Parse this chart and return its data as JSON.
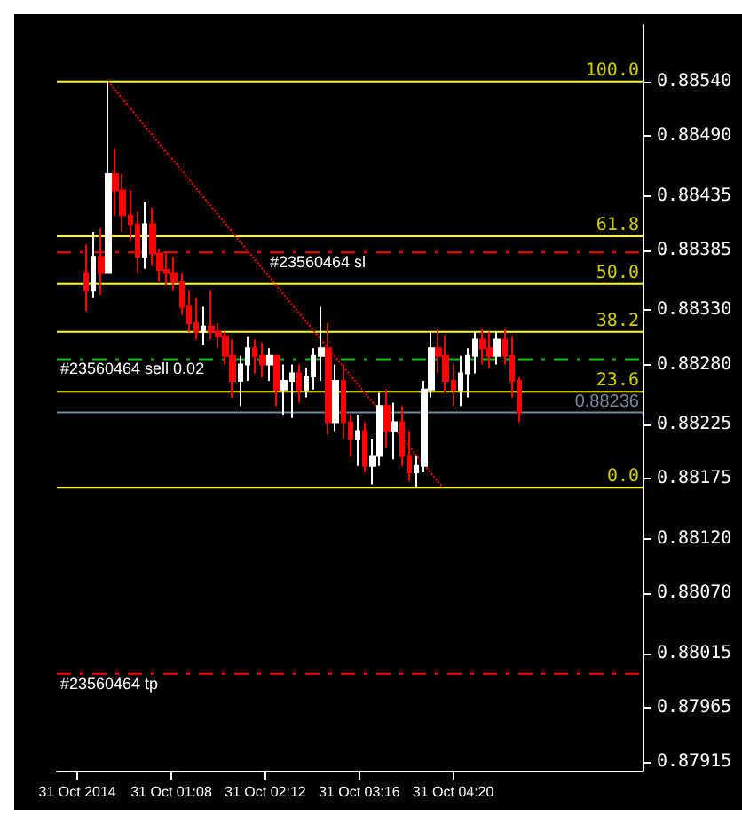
{
  "chart_data": {
    "type": "candlestick",
    "x": [
      "2014-10-31T00:10",
      "2014-10-31T00:15",
      "2014-10-31T00:20",
      "2014-10-31T00:25",
      "2014-10-31T00:30",
      "2014-10-31T00:35",
      "2014-10-31T00:40",
      "2014-10-31T00:45",
      "2014-10-31T00:50",
      "2014-10-31T00:55",
      "2014-10-31T01:00",
      "2014-10-31T01:05",
      "2014-10-31T01:10",
      "2014-10-31T01:15",
      "2014-10-31T01:20",
      "2014-10-31T01:25",
      "2014-10-31T01:30",
      "2014-10-31T01:35",
      "2014-10-31T01:40",
      "2014-10-31T01:45",
      "2014-10-31T01:50",
      "2014-10-31T01:55",
      "2014-10-31T02:00",
      "2014-10-31T02:05",
      "2014-10-31T02:10",
      "2014-10-31T02:15",
      "2014-10-31T02:20",
      "2014-10-31T02:25",
      "2014-10-31T02:30",
      "2014-10-31T02:35",
      "2014-10-31T02:40",
      "2014-10-31T02:45",
      "2014-10-31T02:50",
      "2014-10-31T02:55",
      "2014-10-31T03:00",
      "2014-10-31T03:05",
      "2014-10-31T03:10",
      "2014-10-31T03:15",
      "2014-10-31T03:20",
      "2014-10-31T03:25",
      "2014-10-31T03:30",
      "2014-10-31T03:35",
      "2014-10-31T03:40",
      "2014-10-31T03:45",
      "2014-10-31T03:50",
      "2014-10-31T03:55",
      "2014-10-31T04:00",
      "2014-10-31T04:05",
      "2014-10-31T04:10",
      "2014-10-31T04:15",
      "2014-10-31T04:20",
      "2014-10-31T04:25",
      "2014-10-31T04:30",
      "2014-10-31T04:35",
      "2014-10-31T04:40",
      "2014-10-31T04:45",
      "2014-10-31T04:50",
      "2014-10-31T04:55",
      "2014-10-31T05:00",
      "2014-10-31T05:05"
    ],
    "ohlc": [
      [
        0.88364,
        0.8839,
        0.88329,
        0.88348
      ],
      [
        0.88348,
        0.88402,
        0.88341,
        0.88379
      ],
      [
        0.88379,
        0.88405,
        0.88344,
        0.88364
      ],
      [
        0.88364,
        0.8854,
        0.88364,
        0.88455
      ],
      [
        0.88455,
        0.88478,
        0.88417,
        0.8844
      ],
      [
        0.8844,
        0.88455,
        0.88402,
        0.88417
      ],
      [
        0.88417,
        0.8844,
        0.88394,
        0.88409
      ],
      [
        0.88409,
        0.8842,
        0.88364,
        0.88379
      ],
      [
        0.88379,
        0.88429,
        0.88368,
        0.88409
      ],
      [
        0.88409,
        0.88424,
        0.88371,
        0.88382
      ],
      [
        0.88382,
        0.88386,
        0.88356,
        0.88367
      ],
      [
        0.88367,
        0.88383,
        0.88353,
        0.88364
      ],
      [
        0.88364,
        0.88379,
        0.88348,
        0.88356
      ],
      [
        0.88356,
        0.88364,
        0.88326,
        0.88333
      ],
      [
        0.88333,
        0.88348,
        0.8831,
        0.88318
      ],
      [
        0.88318,
        0.88341,
        0.88303,
        0.8831
      ],
      [
        0.8831,
        0.88333,
        0.88298,
        0.88315
      ],
      [
        0.88315,
        0.88348,
        0.88303,
        0.8831
      ],
      [
        0.8831,
        0.88318,
        0.88295,
        0.88306
      ],
      [
        0.88306,
        0.8831,
        0.8828,
        0.88288
      ],
      [
        0.88288,
        0.88303,
        0.8825,
        0.88265
      ],
      [
        0.88265,
        0.88288,
        0.88242,
        0.8828
      ],
      [
        0.8828,
        0.88306,
        0.88265,
        0.88295
      ],
      [
        0.88295,
        0.88303,
        0.88272,
        0.88288
      ],
      [
        0.88288,
        0.883,
        0.88268,
        0.8828
      ],
      [
        0.8828,
        0.88295,
        0.88265,
        0.88288
      ],
      [
        0.88288,
        0.88288,
        0.88242,
        0.88257
      ],
      [
        0.88257,
        0.8828,
        0.88234,
        0.88265
      ],
      [
        0.88265,
        0.8828,
        0.88231,
        0.88272
      ],
      [
        0.88272,
        0.8828,
        0.88245,
        0.88257
      ],
      [
        0.88257,
        0.88277,
        0.8825,
        0.88269
      ],
      [
        0.88269,
        0.88295,
        0.88257,
        0.88288
      ],
      [
        0.88288,
        0.88333,
        0.88265,
        0.88295
      ],
      [
        0.88295,
        0.88318,
        0.88216,
        0.88227
      ],
      [
        0.88227,
        0.8828,
        0.88219,
        0.88265
      ],
      [
        0.88265,
        0.8828,
        0.88212,
        0.88227
      ],
      [
        0.88227,
        0.88234,
        0.88196,
        0.88212
      ],
      [
        0.88212,
        0.88234,
        0.88187,
        0.88219
      ],
      [
        0.88219,
        0.88227,
        0.88181,
        0.88187
      ],
      [
        0.88187,
        0.88212,
        0.8817,
        0.88196
      ],
      [
        0.88196,
        0.88254,
        0.88187,
        0.88242
      ],
      [
        0.88242,
        0.88257,
        0.88204,
        0.88219
      ],
      [
        0.88219,
        0.88245,
        0.88193,
        0.88227
      ],
      [
        0.88227,
        0.88242,
        0.88187,
        0.88196
      ],
      [
        0.88196,
        0.88219,
        0.88173,
        0.88181
      ],
      [
        0.88181,
        0.88196,
        0.88167,
        0.88187
      ],
      [
        0.88187,
        0.88265,
        0.88181,
        0.88257
      ],
      [
        0.88257,
        0.8831,
        0.8825,
        0.88295
      ],
      [
        0.88295,
        0.88313,
        0.88272,
        0.88288
      ],
      [
        0.88288,
        0.88307,
        0.88254,
        0.88265
      ],
      [
        0.88265,
        0.8828,
        0.88242,
        0.88257
      ],
      [
        0.88257,
        0.88288,
        0.88242,
        0.88272
      ],
      [
        0.88272,
        0.88295,
        0.8825,
        0.88288
      ],
      [
        0.88288,
        0.8831,
        0.88272,
        0.88303
      ],
      [
        0.88303,
        0.88313,
        0.8828,
        0.88295
      ],
      [
        0.88295,
        0.8831,
        0.88277,
        0.88288
      ],
      [
        0.88288,
        0.8831,
        0.8828,
        0.88303
      ],
      [
        0.88303,
        0.88313,
        0.8828,
        0.88288
      ],
      [
        0.88288,
        0.88306,
        0.8825,
        0.88265
      ],
      [
        0.88265,
        0.88268,
        0.88227,
        0.88236
      ]
    ],
    "series": [
      {
        "type": "line",
        "color": "#ff0000",
        "line_style": "dotted",
        "x": [
          "2014-10-31T00:25",
          "2014-10-31T04:13"
        ],
        "values": [
          0.8854,
          0.88167
        ]
      }
    ],
    "xlim": [
      "2014-10-30T23:50",
      "2014-10-31T06:29"
    ],
    "xticks": [
      {
        "value": "2014-10-31T00:04",
        "label": "31 Oct 2014"
      },
      {
        "value": "2014-10-31T01:08",
        "label": "31 Oct 01:08"
      },
      {
        "value": "2014-10-31T02:12",
        "label": "31 Oct 02:12"
      },
      {
        "value": "2014-10-31T03:16",
        "label": "31 Oct 03:16"
      },
      {
        "value": "2014-10-31T04:20",
        "label": "31 Oct 04:20"
      }
    ],
    "ylim": [
      0.87907,
      0.88592
    ],
    "yticks": [
      {
        "value": 0.8854,
        "label": "0.88540"
      },
      {
        "value": 0.8849,
        "label": "0.88490"
      },
      {
        "value": 0.88435,
        "label": "0.88435"
      },
      {
        "value": 0.88385,
        "label": "0.88385"
      },
      {
        "value": 0.8833,
        "label": "0.88330"
      },
      {
        "value": 0.8828,
        "label": "0.88280"
      },
      {
        "value": 0.88225,
        "label": "0.88225"
      },
      {
        "value": 0.88175,
        "label": "0.88175"
      },
      {
        "value": 0.8812,
        "label": "0.88120"
      },
      {
        "value": 0.8807,
        "label": "0.88070"
      },
      {
        "value": 0.88015,
        "label": "0.88015"
      },
      {
        "value": 0.87965,
        "label": "0.87965"
      },
      {
        "value": 0.87915,
        "label": "0.87915"
      }
    ],
    "ref_lines": [
      {
        "axis": "y",
        "value": 0.8854,
        "color": "#ffff00",
        "line_style": "solid"
      },
      {
        "axis": "y",
        "value": 0.88398,
        "color": "#ffff00",
        "line_style": "solid"
      },
      {
        "axis": "y",
        "value": 0.88354,
        "color": "#ffff00",
        "line_style": "solid"
      },
      {
        "axis": "y",
        "value": 0.8831,
        "color": "#ffff00",
        "line_style": "solid"
      },
      {
        "axis": "y",
        "value": 0.88255,
        "color": "#ffff00",
        "line_style": "solid"
      },
      {
        "axis": "y",
        "value": 0.88167,
        "color": "#ffff00",
        "line_style": "solid"
      },
      {
        "axis": "y",
        "value": 0.88383,
        "label": "#23560464 sl",
        "color": "#ff0000",
        "line_style": "dashed"
      },
      {
        "axis": "y",
        "value": 0.88285,
        "label": "#23560464 sell 0.02",
        "color": "#00c000",
        "line_style": "dashed"
      },
      {
        "axis": "y",
        "value": 0.87996,
        "label": "#23560464 tp",
        "color": "#ff0000",
        "line_style": "dashed"
      },
      {
        "axis": "y",
        "value": 0.88236,
        "label": "0.88236",
        "color": "#778899",
        "line_style": "solid"
      }
    ],
    "annotations": [
      {
        "text": "100.0",
        "y": 0.8854
      },
      {
        "text": "61.8",
        "y": 0.88398
      },
      {
        "text": "50.0",
        "y": 0.88354
      },
      {
        "text": "38.2",
        "y": 0.8831
      },
      {
        "text": "23.6",
        "y": 0.88255
      },
      {
        "text": "0.0",
        "y": 0.88167
      }
    ],
    "grid": false
  }
}
